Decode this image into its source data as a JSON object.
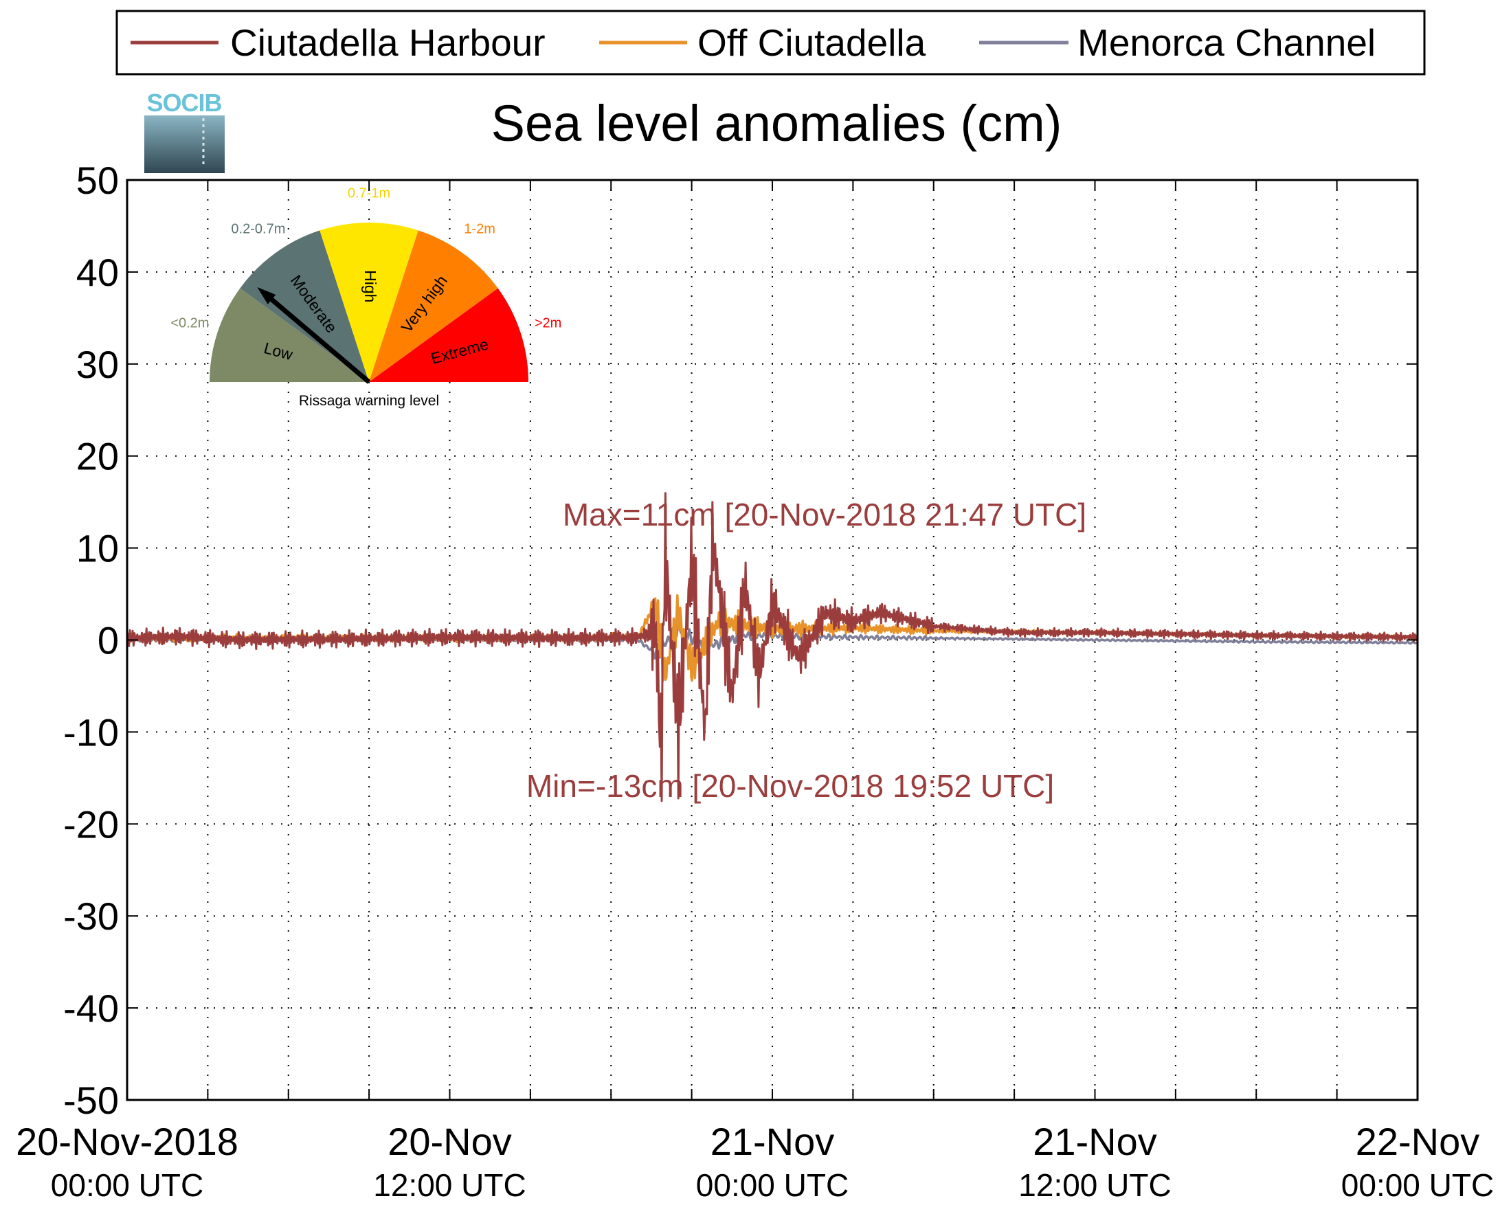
{
  "chart_data": {
    "type": "line",
    "title": "Sea level anomalies (cm)",
    "xlabel": "",
    "ylabel": "",
    "ylim": [
      -50,
      50
    ],
    "yticks": [
      50,
      40,
      30,
      20,
      10,
      0,
      -10,
      -20,
      -30,
      -40,
      -50
    ],
    "xlim": [
      "2018-11-20 00:00",
      "2018-11-22 00:00"
    ],
    "xticks": [
      {
        "t": "2018-11-20 00:00",
        "line1": "20-Nov-2018",
        "line2": "00:00 UTC"
      },
      {
        "t": "2018-11-20 12:00",
        "line1": "20-Nov",
        "line2": "12:00 UTC"
      },
      {
        "t": "2018-11-21 00:00",
        "line1": "21-Nov",
        "line2": "00:00 UTC"
      },
      {
        "t": "2018-11-21 12:00",
        "line1": "21-Nov",
        "line2": "12:00 UTC"
      },
      {
        "t": "2018-11-22 00:00",
        "line1": "22-Nov",
        "line2": "00:00 UTC"
      }
    ],
    "minor_xticks": [
      "2018-11-20 03:00",
      "2018-11-20 06:00",
      "2018-11-20 09:00",
      "2018-11-20 15:00",
      "2018-11-20 18:00",
      "2018-11-20 21:00",
      "2018-11-21 03:00",
      "2018-11-21 06:00",
      "2018-11-21 09:00",
      "2018-11-21 15:00",
      "2018-11-21 18:00",
      "2018-11-21 21:00"
    ],
    "grid": true,
    "legend_position": "top",
    "series": [
      {
        "name": "Ciutadella Harbour",
        "color": "#9b3d3d",
        "points": [
          [
            "2018-11-20 00:00",
            0.2
          ],
          [
            "2018-11-20 02:00",
            0.4
          ],
          [
            "2018-11-20 04:00",
            0.0
          ],
          [
            "2018-11-20 08:00",
            0.1
          ],
          [
            "2018-11-20 12:00",
            0.3
          ],
          [
            "2018-11-20 16:00",
            0.2
          ],
          [
            "2018-11-20 19:00",
            0.3
          ],
          [
            "2018-11-20 19:40",
            1.0
          ],
          [
            "2018-11-20 19:52",
            -13
          ],
          [
            "2018-11-20 20:00",
            10
          ],
          [
            "2018-11-20 20:30",
            -10
          ],
          [
            "2018-11-20 21:00",
            9
          ],
          [
            "2018-11-20 21:30",
            -10
          ],
          [
            "2018-11-20 21:47",
            11
          ],
          [
            "2018-11-20 22:30",
            -6
          ],
          [
            "2018-11-20 23:00",
            6
          ],
          [
            "2018-11-20 23:30",
            -4
          ],
          [
            "2018-11-21 00:00",
            4
          ],
          [
            "2018-11-21 01:00",
            -2
          ],
          [
            "2018-11-21 02:00",
            3
          ],
          [
            "2018-11-21 03:00",
            2
          ],
          [
            "2018-11-21 04:00",
            3
          ],
          [
            "2018-11-21 06:00",
            1.5
          ],
          [
            "2018-11-21 09:00",
            0.8
          ],
          [
            "2018-11-21 12:00",
            0.8
          ],
          [
            "2018-11-21 18:00",
            0.5
          ],
          [
            "2018-11-22 00:00",
            0.3
          ]
        ]
      },
      {
        "name": "Off Ciutadella",
        "color": "#e8922a",
        "points": [
          [
            "2018-11-20 00:00",
            0.2
          ],
          [
            "2018-11-20 06:00",
            0.2
          ],
          [
            "2018-11-20 12:00",
            0.2
          ],
          [
            "2018-11-20 19:00",
            0.3
          ],
          [
            "2018-11-20 19:40",
            4
          ],
          [
            "2018-11-20 20:00",
            -4
          ],
          [
            "2018-11-20 20:30",
            3
          ],
          [
            "2018-11-20 21:00",
            -3
          ],
          [
            "2018-11-20 22:00",
            2
          ],
          [
            "2018-11-21 00:00",
            1.2
          ],
          [
            "2018-11-21 03:00",
            1.3
          ],
          [
            "2018-11-21 06:00",
            1.0
          ],
          [
            "2018-11-21 12:00",
            0.8
          ],
          [
            "2018-11-21 18:00",
            0.5
          ],
          [
            "2018-11-22 00:00",
            0.3
          ]
        ]
      },
      {
        "name": "Menorca Channel",
        "color": "#7f7f9a",
        "points": [
          [
            "2018-11-20 00:00",
            0.0
          ],
          [
            "2018-11-20 06:00",
            0.1
          ],
          [
            "2018-11-20 12:00",
            0.1
          ],
          [
            "2018-11-20 19:00",
            0.0
          ],
          [
            "2018-11-20 19:40",
            -1.5
          ],
          [
            "2018-11-20 20:30",
            1.2
          ],
          [
            "2018-11-20 21:30",
            -0.8
          ],
          [
            "2018-11-20 23:00",
            0.5
          ],
          [
            "2018-11-21 03:00",
            0.3
          ],
          [
            "2018-11-21 12:00",
            0.0
          ],
          [
            "2018-11-21 18:00",
            -0.2
          ],
          [
            "2018-11-22 00:00",
            -0.3
          ]
        ]
      }
    ],
    "annotations": [
      {
        "name": "max",
        "text": "Max=11cm [20-Nov-2018 21:47 UTC]",
        "color": "#9b3d3d"
      },
      {
        "name": "min",
        "text": "Min=-13cm [20-Nov-2018 19:52 UTC]",
        "color": "#9b3d3d"
      }
    ]
  },
  "logo": {
    "text": "SOCIB"
  },
  "gauge": {
    "title": "Rissaga warning level",
    "needle_level": "Moderate",
    "segments": [
      {
        "label": "Low",
        "range": "<0.2m",
        "color": "#7e8a66",
        "range_color": "#7e8a66"
      },
      {
        "label": "Moderate",
        "range": "0.2-0.7m",
        "color": "#5c7373",
        "range_color": "#5c7373"
      },
      {
        "label": "High",
        "range": "0.7-1m",
        "color": "#ffe600",
        "range_color": "#f5d400"
      },
      {
        "label": "Very high",
        "range": "1-2m",
        "color": "#ff8000",
        "range_color": "#ff8000"
      },
      {
        "label": "Extreme",
        "range": ">2m",
        "color": "#ff0000",
        "range_color": "#ff0000"
      }
    ]
  }
}
